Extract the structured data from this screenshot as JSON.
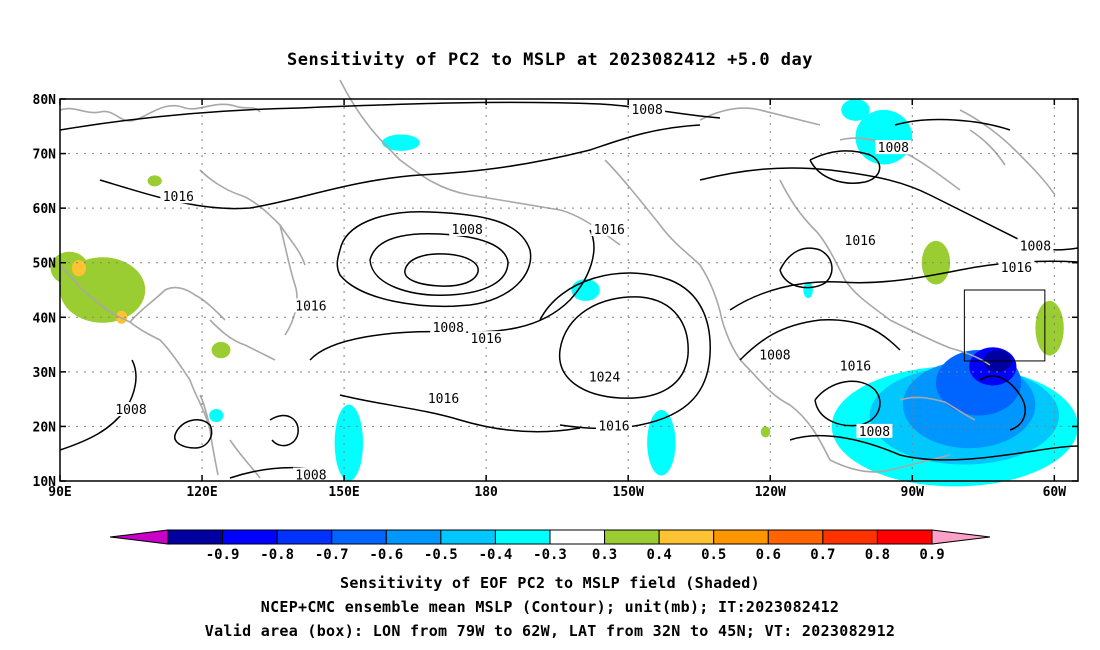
{
  "title": "Sensitivity of PC2 to MSLP at 2023082412 +5.0 day",
  "map": {
    "lon_range": [
      90,
      305
    ],
    "lat_range": [
      10,
      80
    ],
    "lat_ticks": [
      {
        "lat": 80,
        "label": "80N"
      },
      {
        "lat": 70,
        "label": "70N"
      },
      {
        "lat": 60,
        "label": "60N"
      },
      {
        "lat": 50,
        "label": "50N"
      },
      {
        "lat": 40,
        "label": "40N"
      },
      {
        "lat": 30,
        "label": "30N"
      },
      {
        "lat": 20,
        "label": "20N"
      },
      {
        "lat": 10,
        "label": "10N"
      }
    ],
    "lon_ticks": [
      {
        "lon": 90,
        "label": "90E"
      },
      {
        "lon": 120,
        "label": "120E"
      },
      {
        "lon": 150,
        "label": "150E"
      },
      {
        "lon": 180,
        "label": "180"
      },
      {
        "lon": 210,
        "label": "150W"
      },
      {
        "lon": 240,
        "label": "120W"
      },
      {
        "lon": 270,
        "label": "90W"
      },
      {
        "lon": 300,
        "label": "60W"
      }
    ],
    "grid": "dotted",
    "valid_box": {
      "lon_w": 281,
      "lon_e": 298,
      "lat_s": 32,
      "lat_n": 45
    },
    "contour_labels": [
      {
        "text": "1008",
        "lon": 214,
        "lat": 78
      },
      {
        "text": "1008",
        "lon": 266,
        "lat": 71
      },
      {
        "text": "1016",
        "lon": 115,
        "lat": 62
      },
      {
        "text": "1008",
        "lon": 176,
        "lat": 56
      },
      {
        "text": "1016",
        "lon": 206,
        "lat": 56
      },
      {
        "text": "1016",
        "lon": 259,
        "lat": 54
      },
      {
        "text": "1008",
        "lon": 296,
        "lat": 53
      },
      {
        "text": "1016",
        "lon": 292,
        "lat": 49
      },
      {
        "text": "1016",
        "lon": 143,
        "lat": 42
      },
      {
        "text": "1008",
        "lon": 172,
        "lat": 38
      },
      {
        "text": "1016",
        "lon": 180,
        "lat": 36
      },
      {
        "text": "1024",
        "lon": 205,
        "lat": 29
      },
      {
        "text": "1008",
        "lon": 241,
        "lat": 33
      },
      {
        "text": "1016",
        "lon": 258,
        "lat": 31
      },
      {
        "text": "1016",
        "lon": 171,
        "lat": 25
      },
      {
        "text": "1008",
        "lon": 105,
        "lat": 23
      },
      {
        "text": "1016",
        "lon": 207,
        "lat": 20
      },
      {
        "text": "1008",
        "lon": 262,
        "lat": 19
      },
      {
        "text": "1008",
        "lon": 143,
        "lat": 11
      }
    ],
    "shading": [
      {
        "lon": 99,
        "lat": 45,
        "rx": 9,
        "ry": 6,
        "color": "#9acd32"
      },
      {
        "lon": 92,
        "lat": 49,
        "rx": 4,
        "ry": 3,
        "color": "#9acd32"
      },
      {
        "lon": 94,
        "lat": 49,
        "rx": 1.5,
        "ry": 1.5,
        "color": "#ffc232"
      },
      {
        "lon": 103,
        "lat": 40,
        "rx": 1.2,
        "ry": 1.2,
        "color": "#ffc232"
      },
      {
        "lon": 110,
        "lat": 65,
        "rx": 1.5,
        "ry": 1,
        "color": "#9acd32"
      },
      {
        "lon": 124,
        "lat": 34,
        "rx": 2,
        "ry": 1.5,
        "color": "#9acd32"
      },
      {
        "lon": 123,
        "lat": 22,
        "rx": 1.5,
        "ry": 1.2,
        "color": "#00ffff"
      },
      {
        "lon": 151,
        "lat": 17,
        "rx": 3,
        "ry": 7,
        "color": "#00ffff"
      },
      {
        "lon": 162,
        "lat": 72,
        "rx": 4,
        "ry": 1.5,
        "color": "#00ffff"
      },
      {
        "lon": 201,
        "lat": 45,
        "rx": 3,
        "ry": 2,
        "color": "#00ffff"
      },
      {
        "lon": 217,
        "lat": 17,
        "rx": 3,
        "ry": 6,
        "color": "#00ffff"
      },
      {
        "lon": 264,
        "lat": 73,
        "rx": 6,
        "ry": 5,
        "color": "#00ffff"
      },
      {
        "lon": 258,
        "lat": 78,
        "rx": 3,
        "ry": 2,
        "color": "#00ffff"
      },
      {
        "lon": 248,
        "lat": 45,
        "rx": 1,
        "ry": 1.5,
        "color": "#00ffff"
      },
      {
        "lon": 239,
        "lat": 19,
        "rx": 1,
        "ry": 1,
        "color": "#9acd32"
      },
      {
        "lon": 275,
        "lat": 50,
        "rx": 3,
        "ry": 4,
        "color": "#9acd32"
      },
      {
        "lon": 299,
        "lat": 38,
        "rx": 3,
        "ry": 5,
        "color": "#9acd32"
      },
      {
        "lon": 279,
        "lat": 20,
        "rx": 26,
        "ry": 11,
        "color": "#00ffff"
      },
      {
        "lon": 281,
        "lat": 22,
        "rx": 20,
        "ry": 9,
        "color": "#00c8ff"
      },
      {
        "lon": 282,
        "lat": 24,
        "rx": 14,
        "ry": 8,
        "color": "#0096ff"
      },
      {
        "lon": 284,
        "lat": 28,
        "rx": 9,
        "ry": 6,
        "color": "#0064ff"
      },
      {
        "lon": 287,
        "lat": 31,
        "rx": 5,
        "ry": 3.5,
        "color": "#0000ff"
      },
      {
        "lon": 288,
        "lat": 32,
        "rx": 3,
        "ry": 2,
        "color": "#0000a0"
      }
    ]
  },
  "colorbar": {
    "labels": [
      "-0.9",
      "-0.8",
      "-0.7",
      "-0.6",
      "-0.5",
      "-0.4",
      "-0.3",
      "0.3",
      "0.4",
      "0.5",
      "0.6",
      "0.7",
      "0.8",
      "0.9"
    ],
    "colors": [
      "#c800c8",
      "#0000a0",
      "#0000ff",
      "#0032ff",
      "#0064ff",
      "#0096ff",
      "#00c8ff",
      "#00ffff",
      "#ffffff",
      "#9acd32",
      "#ffc232",
      "#ff9600",
      "#ff6400",
      "#ff3200",
      "#ff0000",
      "#ffa0c8"
    ]
  },
  "captions": {
    "line1": "Sensitivity of EOF PC2 to MSLP field (Shaded)",
    "line2": "NCEP+CMC ensemble mean MSLP (Contour); unit(mb); IT:2023082412",
    "line3": "Valid area (box): LON from 79W to 62W, LAT from 32N to 45N; VT: 2023082912"
  }
}
